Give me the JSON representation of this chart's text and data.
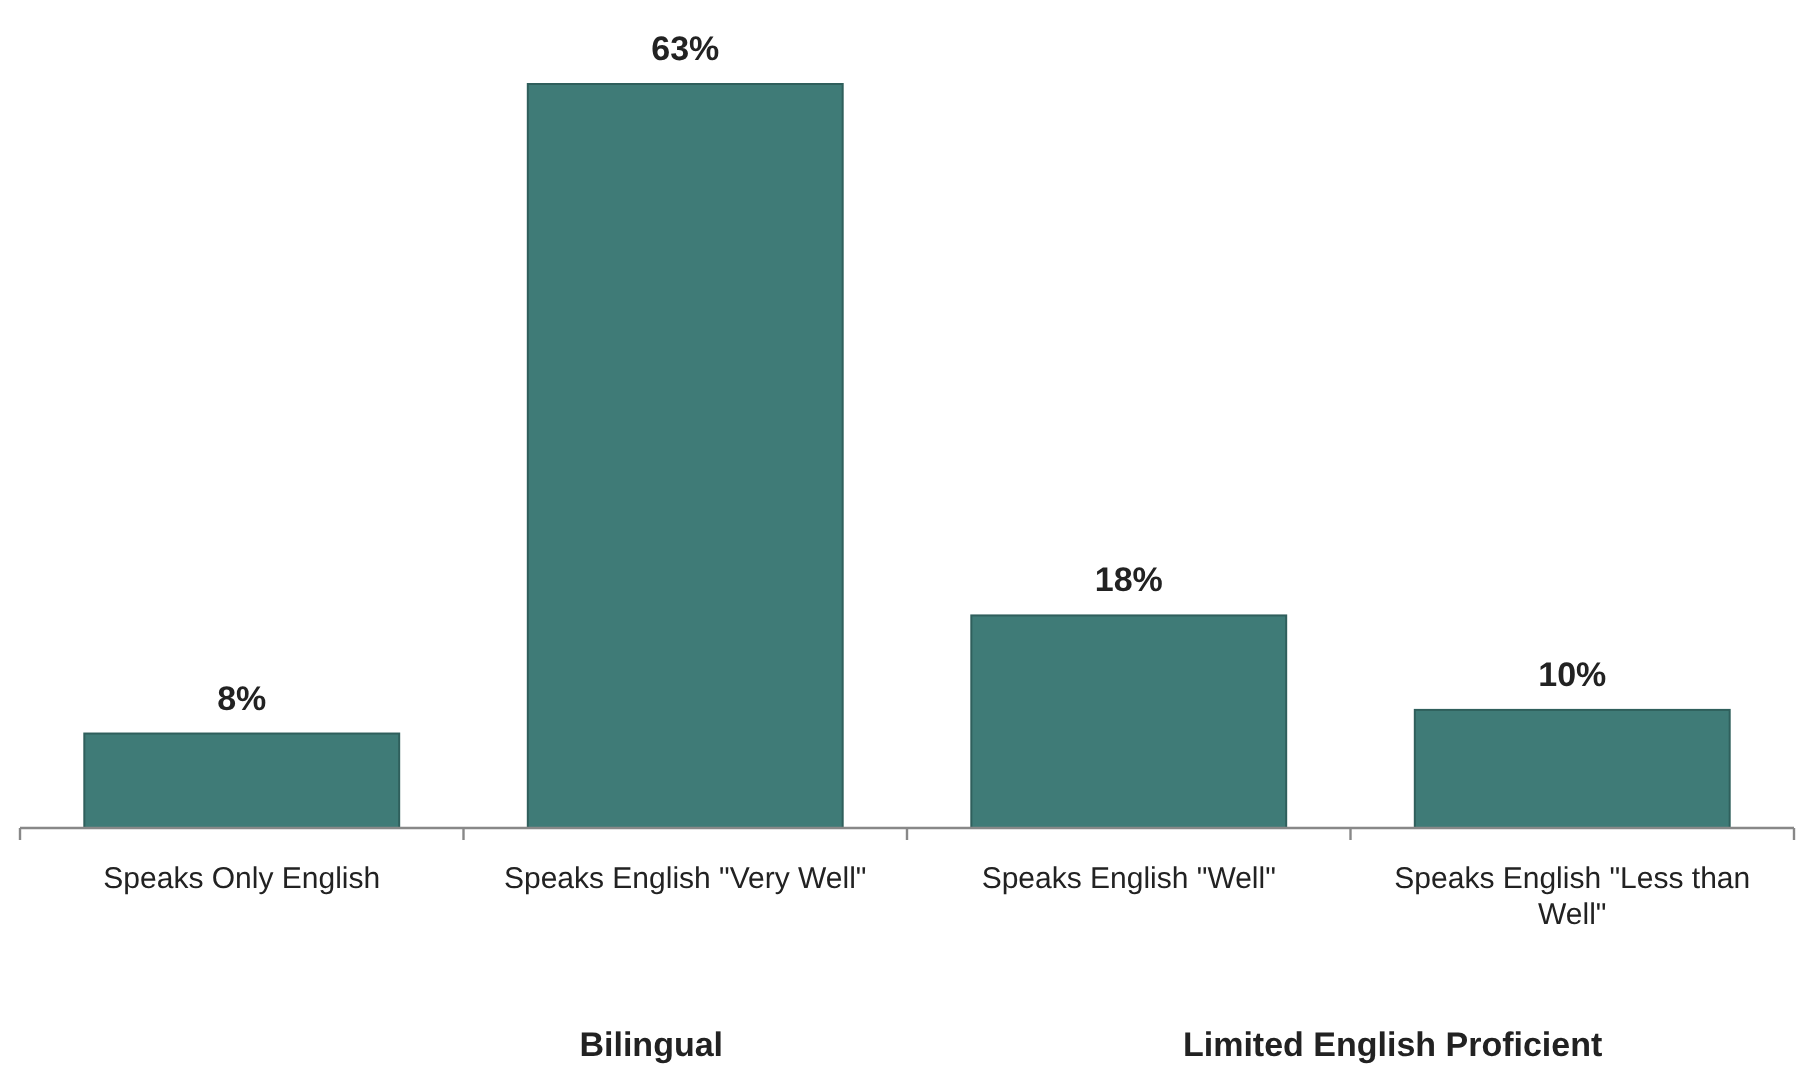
{
  "chart_data": {
    "type": "bar",
    "categories": [
      "Speaks Only English",
      "Speaks English \"Very Well\"",
      "Speaks English \"Well\"",
      "Speaks English \"Less than Well\""
    ],
    "values": [
      8,
      63,
      18,
      10
    ],
    "value_labels": [
      "8%",
      "63%",
      "18%",
      "10%"
    ],
    "color": "#3f7b77",
    "relative": false,
    "annotations": [
      "Bilingual",
      "Limited English Proficient"
    ]
  }
}
